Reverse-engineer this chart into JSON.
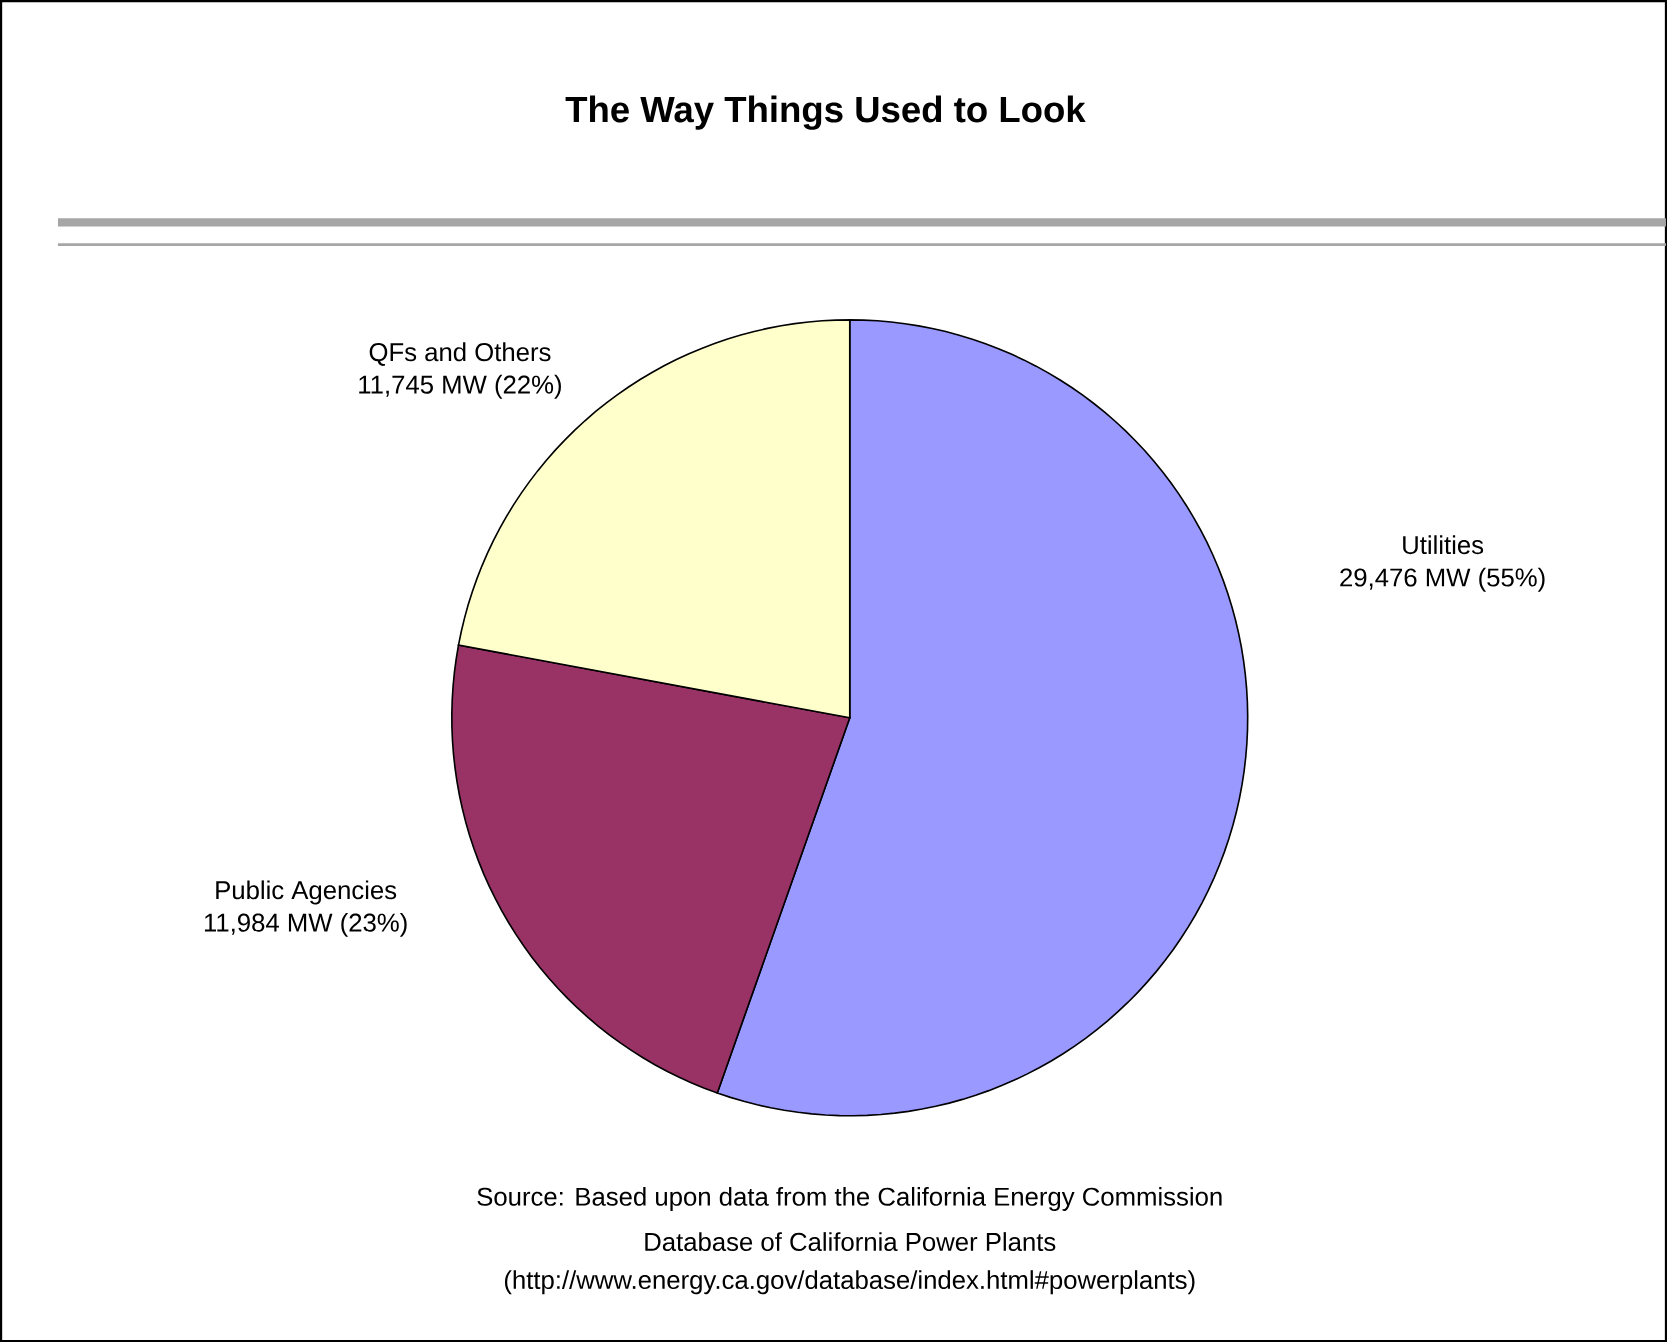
{
  "chart_data": {
    "type": "pie",
    "title": "The Way Things Used to Look",
    "categories": [
      "Utilities",
      "Public Agencies",
      "QFs and Others"
    ],
    "values": [
      29476,
      11984,
      11745
    ],
    "value_labels": [
      "29,476 MW (55%)",
      "11,984 MW (23%)",
      "11,745 MW (22%)"
    ],
    "colors": [
      "#9999ff",
      "#993366",
      "#ffffcc"
    ],
    "annotations": [
      "Source:  Based upon data from the California Energy Commission",
      "Database of California Power Plants",
      "(http://www.energy.ca.gov/database/index.html#powerplants)"
    ]
  }
}
